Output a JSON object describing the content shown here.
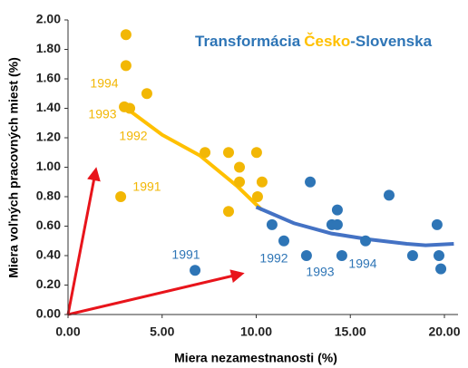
{
  "chart_data": {
    "type": "scatter",
    "title_parts": [
      "Transformácia",
      "Česko",
      "-Slovenska"
    ],
    "x_label": "Miera nezamestnanosti (%)",
    "y_label": "Miera voľných pracovných miest (%)",
    "xlim": [
      0,
      20
    ],
    "xticks": [
      {
        "value": 0,
        "label": "0.00"
      },
      {
        "value": 5,
        "label": "5.00"
      },
      {
        "value": 10,
        "label": "10.00"
      },
      {
        "value": 15,
        "label": "15.00"
      },
      {
        "value": 20,
        "label": "20.00"
      }
    ],
    "ylim": [
      0,
      2
    ],
    "yticks": [
      {
        "value": 0,
        "label": "0.00"
      },
      {
        "value": 0.2,
        "label": "0.20"
      },
      {
        "value": 0.4,
        "label": "0.40"
      },
      {
        "value": 0.6,
        "label": "0.60"
      },
      {
        "value": 0.8,
        "label": "0.80"
      },
      {
        "value": 1,
        "label": "1.00"
      },
      {
        "value": 1.2,
        "label": "1.20"
      },
      {
        "value": 1.4,
        "label": "1.40"
      },
      {
        "value": 1.6,
        "label": "1.60"
      },
      {
        "value": 1.8,
        "label": "1.80"
      },
      {
        "value": 2,
        "label": "2.00"
      }
    ],
    "grid": false,
    "series": [
      {
        "name": "Česko",
        "color": "#f2b705",
        "trend_color": "#ffc000",
        "x": [
          3.08,
          3.08,
          2.99,
          3.28,
          4.19,
          7.28,
          8.53,
          9.11,
          9.11,
          10.02,
          10.31,
          10.07,
          8.53,
          2.8
        ],
        "values": [
          1.9,
          1.69,
          1.41,
          1.4,
          1.5,
          1.1,
          1.1,
          1.0,
          0.9,
          1.1,
          0.9,
          0.8,
          0.7,
          0.8
        ],
        "trend_x": [
          3,
          5,
          7,
          9,
          10.3
        ],
        "trend_values": [
          1.41,
          1.22,
          1.08,
          0.87,
          0.71
        ],
        "labels": [
          "1994",
          "1993",
          "1992",
          "1991"
        ]
      },
      {
        "name": "Slovensko",
        "color": "#2e75b6",
        "trend_color": "#4472c4",
        "x": [
          6.75,
          10.84,
          11.47,
          12.87,
          12.67,
          14.02,
          14.31,
          14.31,
          14.55,
          15.81,
          17.06,
          18.31,
          19.61,
          19.71,
          19.81
        ],
        "values": [
          0.3,
          0.61,
          0.5,
          0.9,
          0.4,
          0.61,
          0.71,
          0.61,
          0.4,
          0.5,
          0.81,
          0.4,
          0.61,
          0.4,
          0.31
        ],
        "trend_x": [
          10,
          12,
          14,
          16,
          18,
          19,
          20.5
        ],
        "trend_values": [
          0.73,
          0.62,
          0.55,
          0.51,
          0.48,
          0.47,
          0.48
        ],
        "labels": [
          "1991",
          "1992",
          "1993",
          "1994"
        ]
      }
    ]
  }
}
